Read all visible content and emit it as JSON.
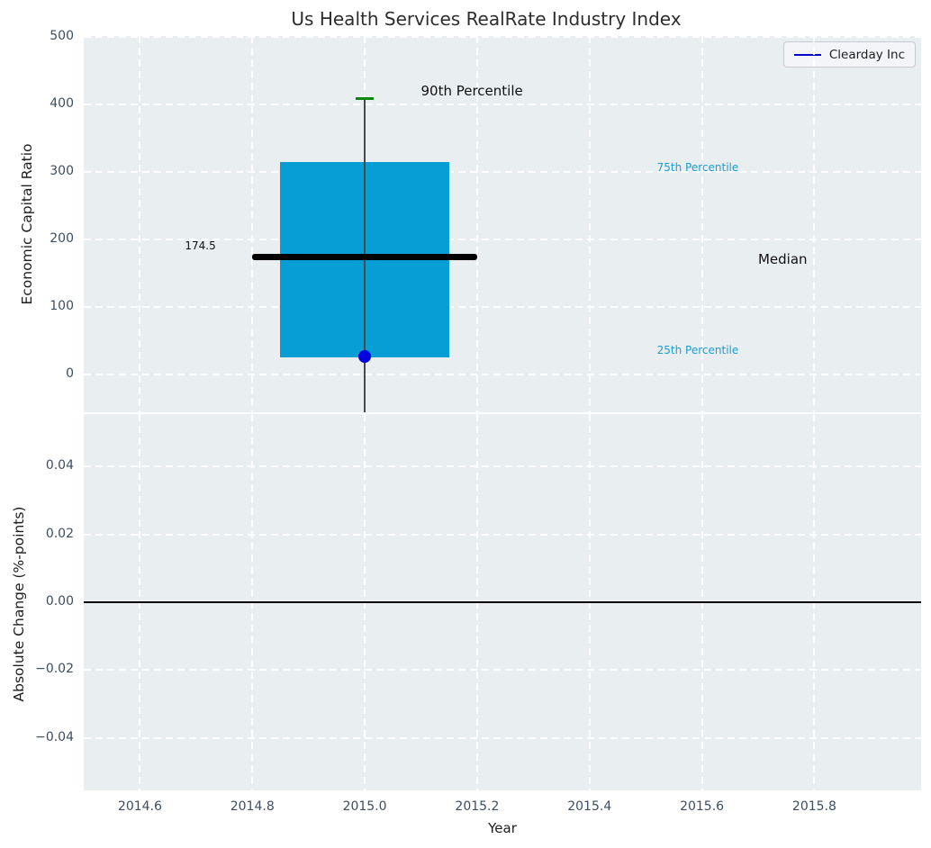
{
  "title": "Us Health Services RealRate Industry Index",
  "legend": {
    "label": "Clearday Inc"
  },
  "x_axis": {
    "label": "Year"
  },
  "colors": {
    "box_fill": "#069ed4",
    "cap_green": "#0a8a0a",
    "point_blue": "#0000dd",
    "legend_line": "#0000cc",
    "percentile_text": "#1b9ed6",
    "annotation_text": "#111111",
    "tick_text": "#3d4e63",
    "plot_bg": "#e9eef0",
    "grid": "#ffffff",
    "whisker": "#4a4a4a",
    "median_line": "#000000",
    "zero_line": "#000000"
  },
  "chart_data": [
    {
      "type": "boxplot",
      "title": "Us Health Services RealRate Industry Index",
      "ylabel": "Economic Capital Ratio",
      "xlabel": "Year",
      "xlim": [
        2014.5,
        2015.99
      ],
      "ylim": [
        -56,
        501
      ],
      "grid": "white dashed, on",
      "legend_position": "upper right",
      "xticks": [
        {
          "v": 2014.6,
          "label": "2014.6"
        },
        {
          "v": 2014.8,
          "label": "2014.8"
        },
        {
          "v": 2015.0,
          "label": "2015.0"
        },
        {
          "v": 2015.2,
          "label": "2015.2"
        },
        {
          "v": 2015.4,
          "label": "2015.4"
        },
        {
          "v": 2015.6,
          "label": "2015.6"
        },
        {
          "v": 2015.8,
          "label": "2015.8"
        }
      ],
      "yticks": [
        {
          "v": 0,
          "label": "0"
        },
        {
          "v": 100,
          "label": "100"
        },
        {
          "v": 200,
          "label": "200"
        },
        {
          "v": 300,
          "label": "300"
        },
        {
          "v": 400,
          "label": "400"
        },
        {
          "v": 500,
          "label": "500"
        }
      ],
      "box": {
        "x": 2015.0,
        "box_width": 0.3,
        "q1": 25,
        "median": 174.5,
        "q3": 315,
        "p90": 408,
        "median_line_span": 0.4,
        "whisker_low_clipped_at": -56,
        "cap_width": 0.032
      },
      "series": [
        {
          "name": "Clearday Inc",
          "points": [
            {
              "x": 2015.0,
              "y": 27
            }
          ]
        }
      ],
      "annotations": [
        {
          "id": "p90",
          "text": "90th Percentile",
          "x": 2015.1,
          "y": 420,
          "color": "#111111",
          "size": 15
        },
        {
          "id": "p75",
          "text": "75th Percentile",
          "x": 2015.52,
          "y": 307,
          "color": "#1b9ed6",
          "size": 12
        },
        {
          "id": "median",
          "text": "Median",
          "x": 2015.7,
          "y": 171,
          "color": "#111111",
          "size": 15
        },
        {
          "id": "p25",
          "text": "25th Percentile",
          "x": 2015.52,
          "y": 36,
          "color": "#1b9ed6",
          "size": 12
        },
        {
          "id": "median-value",
          "text": "174.5",
          "x": 2014.68,
          "y": 191,
          "color": "#111111",
          "size": 12
        }
      ]
    },
    {
      "type": "line",
      "ylabel": "Absolute Change (%-points)",
      "xlabel": "Year",
      "xlim": [
        2014.5,
        2015.99
      ],
      "ylim": [
        -0.0555,
        0.0555
      ],
      "grid": "white dashed, on",
      "yticks": [
        {
          "v": 0.04,
          "label": "0.04"
        },
        {
          "v": 0.02,
          "label": "0.02"
        },
        {
          "v": 0.0,
          "label": "0.00"
        },
        {
          "v": -0.02,
          "label": "−0.02"
        },
        {
          "v": -0.04,
          "label": "−0.04"
        }
      ],
      "zero_line": 0.0,
      "series": []
    }
  ]
}
